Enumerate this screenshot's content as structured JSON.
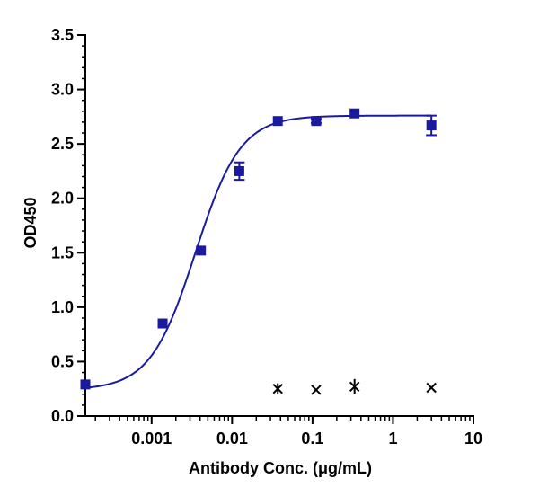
{
  "chart_data": {
    "type": "scatter",
    "title": "",
    "xlabel": "Antibody Conc. (μg/mL)",
    "ylabel": "OD450",
    "x_scale": "log",
    "xlim": [
      0.00015,
      10
    ],
    "ylim": [
      0,
      3.5
    ],
    "x_ticks": [
      0.001,
      0.01,
      0.1,
      1,
      10
    ],
    "x_tick_labels": [
      "0.001",
      "0.01",
      "0.1",
      "1",
      "10"
    ],
    "y_ticks": [
      0,
      0.5,
      1,
      1.5,
      2,
      2.5,
      3,
      3.5
    ],
    "y_tick_labels": [
      "0.0",
      "0.5",
      "1.0",
      "1.5",
      "2.0",
      "2.5",
      "3.0",
      "3.5"
    ],
    "y_minor_step": 0.1,
    "grid": false,
    "legend": "none",
    "series": [
      {
        "marker": "square",
        "color": "#1a1aa0",
        "x": [
          0.00015,
          0.00137,
          0.0041,
          0.0123,
          0.037,
          0.111,
          0.333,
          3.0
        ],
        "y": [
          0.29,
          0.85,
          1.52,
          2.25,
          2.71,
          2.71,
          2.78,
          2.67
        ],
        "err": [
          0,
          0,
          0,
          0.08,
          0,
          0.02,
          0,
          0.09
        ]
      },
      {
        "marker": "x",
        "color": "#000000",
        "x": [
          0.037,
          0.111,
          0.333,
          3.0
        ],
        "y": [
          0.25,
          0.24,
          0.27,
          0.26
        ],
        "err": [
          0.05,
          0,
          0.07,
          0
        ]
      }
    ],
    "fit_curve": {
      "model": "4PL",
      "color": "#1a1aa0",
      "bottom": 0.24,
      "top": 2.76,
      "ec50": 0.0035,
      "hill": 1.55
    }
  }
}
